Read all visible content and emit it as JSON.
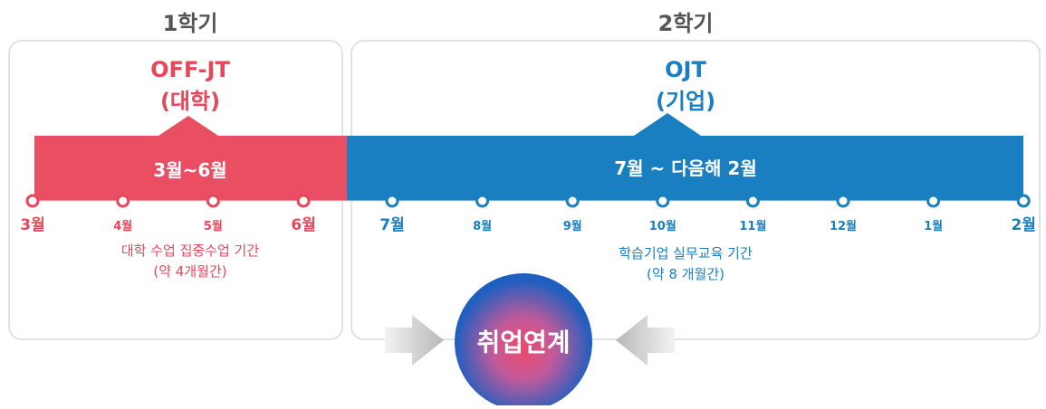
{
  "semesters": [
    {
      "title": "1학기",
      "program": "OFF-JT",
      "org": "(대학)",
      "period": "3월~6월",
      "months": [
        "3월",
        "4월",
        "5월",
        "6월"
      ],
      "description": [
        "대학 수업 집중수업 기간",
        "(약 4개월간)"
      ]
    },
    {
      "title": "2학기",
      "program": "OJT",
      "org": "(기업)",
      "period": "7월 ~ 다음해 2월",
      "months": [
        "7월",
        "8월",
        "9월",
        "10월",
        "11월",
        "12월",
        "1월",
        "2월"
      ],
      "description": [
        "학습기업 실무교육 기간",
        "(약 8 개월간)"
      ]
    }
  ],
  "center": "취업연계"
}
